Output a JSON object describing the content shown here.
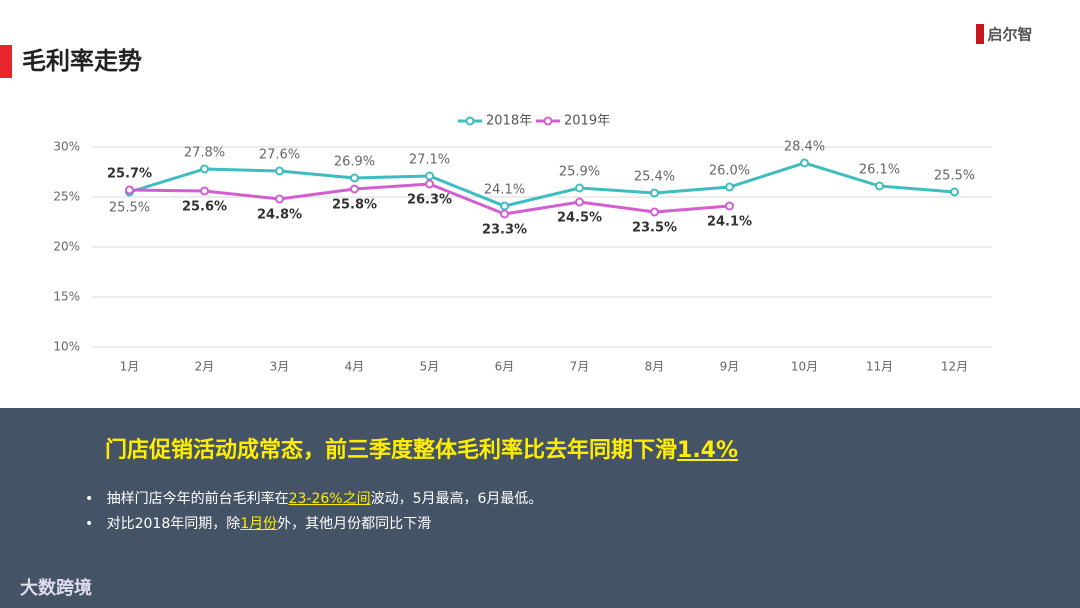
{
  "header": {
    "title": "毛利率走势",
    "logo": "启尔智"
  },
  "chart_data": {
    "type": "line",
    "categories": [
      "1月",
      "2月",
      "3月",
      "4月",
      "5月",
      "6月",
      "7月",
      "8月",
      "9月",
      "10月",
      "11月",
      "12月"
    ],
    "series": [
      {
        "name": "2018年",
        "color": "#3dbdc2",
        "values": [
          25.5,
          27.8,
          27.6,
          26.9,
          27.1,
          24.1,
          25.9,
          25.4,
          26.0,
          28.4,
          26.1,
          25.5
        ],
        "value_labels": [
          "25.5%",
          "27.8%",
          "27.6%",
          "26.9%",
          "27.1%",
          "24.1%",
          "25.9%",
          "25.4%",
          "26.0%",
          "28.4%",
          "26.1%",
          "25.5%"
        ]
      },
      {
        "name": "2019年",
        "color": "#d25ed2",
        "values": [
          25.7,
          25.6,
          24.8,
          25.8,
          26.3,
          23.3,
          24.5,
          23.5,
          24.1,
          null,
          null,
          null
        ],
        "value_labels": [
          "25.7%",
          "25.6%",
          "24.8%",
          "25.8%",
          "26.3%",
          "23.3%",
          "24.5%",
          "23.5%",
          "24.1%",
          null,
          null,
          null
        ]
      }
    ],
    "ylim": [
      10,
      30
    ],
    "yticks": [
      {
        "value": 10,
        "label": "10%"
      },
      {
        "value": 15,
        "label": "15%"
      },
      {
        "value": 20,
        "label": "20%"
      },
      {
        "value": 25,
        "label": "25%"
      },
      {
        "value": 30,
        "label": "30%"
      }
    ],
    "grid": true,
    "legend": "top"
  },
  "summary": {
    "headline": {
      "text": "门店促销活动成常态，前三季度整体毛利率比去年同期下滑",
      "highlight": "1.4%"
    },
    "bullets": [
      {
        "before": "抽样门店今年的前台毛利率在",
        "highlight": "23-26%之间",
        "after": "波动，5月最高，6月最低。"
      },
      {
        "before": "对比2018年同期，除",
        "highlight": "1月份",
        "after": "外，其他月份都同比下滑"
      }
    ],
    "brand": "大数跨境"
  }
}
